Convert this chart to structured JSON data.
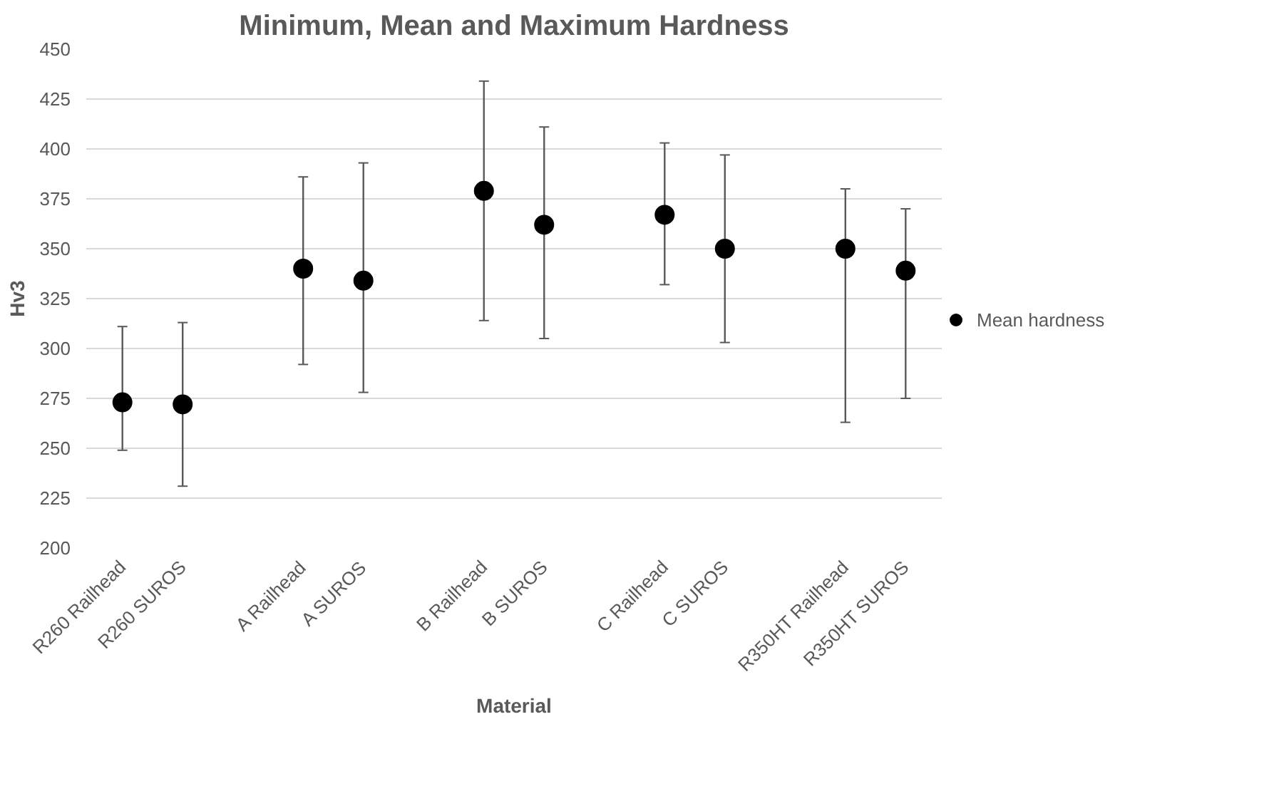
{
  "chart_data": {
    "type": "scatter",
    "title": "Minimum, Mean and Maximum Hardness",
    "xlabel": "Material",
    "ylabel": "Hv3",
    "categories": [
      "R260 Railhead",
      "R260 SUROS",
      null,
      "A Railhead",
      "A SUROS",
      null,
      "B Railhead",
      "B SUROS",
      null,
      "C Railhead",
      "C SUROS",
      null,
      "R350HT Railhead",
      "R350HT SUROS"
    ],
    "series": [
      {
        "name": "Mean hardness",
        "color": "#000000",
        "values": [
          273,
          272,
          null,
          340,
          334,
          null,
          379,
          362,
          null,
          367,
          350,
          null,
          350,
          339
        ],
        "errors": [
          [
            249,
            311
          ],
          [
            231,
            313
          ],
          null,
          [
            292,
            386
          ],
          [
            278,
            393
          ],
          null,
          [
            314,
            434
          ],
          [
            305,
            411
          ],
          null,
          [
            332,
            403
          ],
          [
            303,
            397
          ],
          null,
          [
            263,
            380
          ],
          [
            275,
            370
          ]
        ]
      }
    ],
    "ylim": [
      200,
      450
    ],
    "yticks": [
      200,
      225,
      250,
      275,
      300,
      325,
      350,
      375,
      400,
      425,
      450
    ],
    "grid": "y",
    "legend": "right",
    "marker": "circle"
  }
}
